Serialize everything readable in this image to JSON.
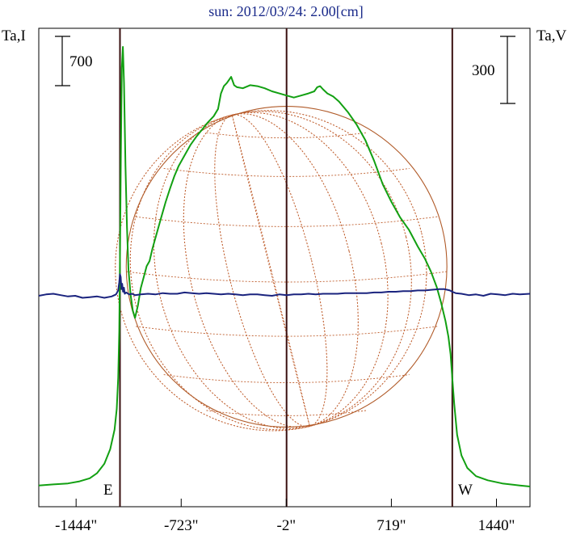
{
  "chart_data": {
    "type": "line",
    "title": "sun: 2012/03/24: 2.00[cm]",
    "ylabel_left": "Ta,I",
    "ylabel_right": "Ta,V",
    "scale_left": "700",
    "scale_right": "300",
    "limb_label_east": "E",
    "limb_label_west": "W",
    "xlim": [
      -1700,
      1670
    ],
    "x_ticks": [
      {
        "value": -1444,
        "label": "-1444\""
      },
      {
        "value": -723,
        "label": "-723\""
      },
      {
        "value": -2,
        "label": "-2\""
      },
      {
        "value": 719,
        "label": "719\""
      },
      {
        "value": 1440,
        "label": "1440\""
      }
    ],
    "limb_markers": [
      -1143,
      0,
      1137
    ],
    "solar_radius": 1100,
    "series": [
      {
        "key": "I",
        "color": "#12a012",
        "points": [
          [
            -1700,
            0.01
          ],
          [
            -1600,
            0.02
          ],
          [
            -1500,
            0.03
          ],
          [
            -1420,
            0.05
          ],
          [
            -1350,
            0.08
          ],
          [
            -1300,
            0.13
          ],
          [
            -1250,
            0.22
          ],
          [
            -1210,
            0.36
          ],
          [
            -1180,
            0.55
          ],
          [
            -1165,
            0.75
          ],
          [
            -1155,
            1.05
          ],
          [
            -1148,
            1.5
          ],
          [
            -1143,
            2.2
          ],
          [
            -1137,
            3.2
          ],
          [
            -1130,
            4.05
          ],
          [
            -1123,
            4.25
          ],
          [
            -1115,
            3.9
          ],
          [
            -1105,
            3.1
          ],
          [
            -1095,
            2.5
          ],
          [
            -1085,
            2.1
          ],
          [
            -1070,
            1.85
          ],
          [
            -1055,
            1.7
          ],
          [
            -1040,
            1.63
          ],
          [
            -1020,
            1.75
          ],
          [
            -1000,
            1.92
          ],
          [
            -975,
            2.05
          ],
          [
            -960,
            2.13
          ],
          [
            -940,
            2.18
          ],
          [
            -920,
            2.3
          ],
          [
            -890,
            2.45
          ],
          [
            -860,
            2.6
          ],
          [
            -830,
            2.75
          ],
          [
            -800,
            2.88
          ],
          [
            -770,
            3.0
          ],
          [
            -740,
            3.1
          ],
          [
            -700,
            3.2
          ],
          [
            -660,
            3.3
          ],
          [
            -620,
            3.38
          ],
          [
            -580,
            3.45
          ],
          [
            -540,
            3.52
          ],
          [
            -500,
            3.58
          ],
          [
            -470,
            3.65
          ],
          [
            -450,
            3.8
          ],
          [
            -430,
            3.87
          ],
          [
            -410,
            3.9
          ],
          [
            -395,
            3.93
          ],
          [
            -380,
            3.96
          ],
          [
            -360,
            3.88
          ],
          [
            -340,
            3.86
          ],
          [
            -300,
            3.85
          ],
          [
            -250,
            3.88
          ],
          [
            -200,
            3.87
          ],
          [
            -150,
            3.85
          ],
          [
            -100,
            3.82
          ],
          [
            -50,
            3.8
          ],
          [
            0,
            3.78
          ],
          [
            50,
            3.76
          ],
          [
            100,
            3.78
          ],
          [
            150,
            3.8
          ],
          [
            190,
            3.82
          ],
          [
            210,
            3.86
          ],
          [
            230,
            3.87
          ],
          [
            250,
            3.84
          ],
          [
            280,
            3.8
          ],
          [
            320,
            3.77
          ],
          [
            360,
            3.72
          ],
          [
            420,
            3.62
          ],
          [
            480,
            3.5
          ],
          [
            540,
            3.35
          ],
          [
            600,
            3.15
          ],
          [
            660,
            2.92
          ],
          [
            720,
            2.75
          ],
          [
            780,
            2.6
          ],
          [
            840,
            2.48
          ],
          [
            900,
            2.32
          ],
          [
            950,
            2.2
          ],
          [
            990,
            2.08
          ],
          [
            1030,
            1.93
          ],
          [
            1060,
            1.78
          ],
          [
            1090,
            1.6
          ],
          [
            1110,
            1.45
          ],
          [
            1125,
            1.28
          ],
          [
            1137,
            1.05
          ],
          [
            1150,
            0.8
          ],
          [
            1170,
            0.5
          ],
          [
            1200,
            0.3
          ],
          [
            1240,
            0.18
          ],
          [
            1300,
            0.1
          ],
          [
            1380,
            0.06
          ],
          [
            1480,
            0.03
          ],
          [
            1600,
            0.01
          ],
          [
            1670,
            0.0
          ]
        ]
      },
      {
        "key": "V",
        "color": "#1a237e",
        "points": [
          [
            -1700,
            0.0
          ],
          [
            -1650,
            0.02
          ],
          [
            -1600,
            0.03
          ],
          [
            -1550,
            0.01
          ],
          [
            -1500,
            -0.01
          ],
          [
            -1450,
            0.0
          ],
          [
            -1400,
            -0.03
          ],
          [
            -1350,
            -0.02
          ],
          [
            -1300,
            -0.01
          ],
          [
            -1250,
            -0.03
          ],
          [
            -1200,
            -0.01
          ],
          [
            -1170,
            0.02
          ],
          [
            -1155,
            0.08
          ],
          [
            -1148,
            0.2
          ],
          [
            -1143,
            0.32
          ],
          [
            -1138,
            0.28
          ],
          [
            -1133,
            0.1
          ],
          [
            -1128,
            0.18
          ],
          [
            -1122,
            0.06
          ],
          [
            -1116,
            0.12
          ],
          [
            -1110,
            0.03
          ],
          [
            -1100,
            0.05
          ],
          [
            -1080,
            0.02
          ],
          [
            -1060,
            0.03
          ],
          [
            -1040,
            0.01
          ],
          [
            -1000,
            0.02
          ],
          [
            -950,
            0.03
          ],
          [
            -900,
            0.02
          ],
          [
            -850,
            0.04
          ],
          [
            -800,
            0.03
          ],
          [
            -750,
            0.03
          ],
          [
            -700,
            0.05
          ],
          [
            -650,
            0.04
          ],
          [
            -600,
            0.03
          ],
          [
            -550,
            0.04
          ],
          [
            -500,
            0.03
          ],
          [
            -450,
            0.02
          ],
          [
            -400,
            0.03
          ],
          [
            -350,
            0.02
          ],
          [
            -300,
            0.01
          ],
          [
            -250,
            0.02
          ],
          [
            -200,
            0.02
          ],
          [
            -150,
            0.01
          ],
          [
            -100,
            0.0
          ],
          [
            -50,
            0.02
          ],
          [
            0,
            0.01
          ],
          [
            50,
            0.02
          ],
          [
            100,
            0.02
          ],
          [
            150,
            0.03
          ],
          [
            200,
            0.02
          ],
          [
            250,
            0.03
          ],
          [
            300,
            0.03
          ],
          [
            350,
            0.03
          ],
          [
            400,
            0.04
          ],
          [
            450,
            0.04
          ],
          [
            500,
            0.04
          ],
          [
            550,
            0.04
          ],
          [
            600,
            0.05
          ],
          [
            650,
            0.05
          ],
          [
            700,
            0.06
          ],
          [
            750,
            0.06
          ],
          [
            800,
            0.07
          ],
          [
            850,
            0.07
          ],
          [
            900,
            0.08
          ],
          [
            950,
            0.08
          ],
          [
            1000,
            0.09
          ],
          [
            1050,
            0.1
          ],
          [
            1080,
            0.1
          ],
          [
            1100,
            0.09
          ],
          [
            1120,
            0.08
          ],
          [
            1137,
            0.06
          ],
          [
            1160,
            0.04
          ],
          [
            1200,
            0.03
          ],
          [
            1250,
            0.01
          ],
          [
            1300,
            0.02
          ],
          [
            1350,
            0.0
          ],
          [
            1400,
            0.03
          ],
          [
            1450,
            0.02
          ],
          [
            1500,
            0.01
          ],
          [
            1550,
            0.03
          ],
          [
            1600,
            0.02
          ],
          [
            1670,
            0.03
          ]
        ]
      }
    ],
    "grid": false
  }
}
